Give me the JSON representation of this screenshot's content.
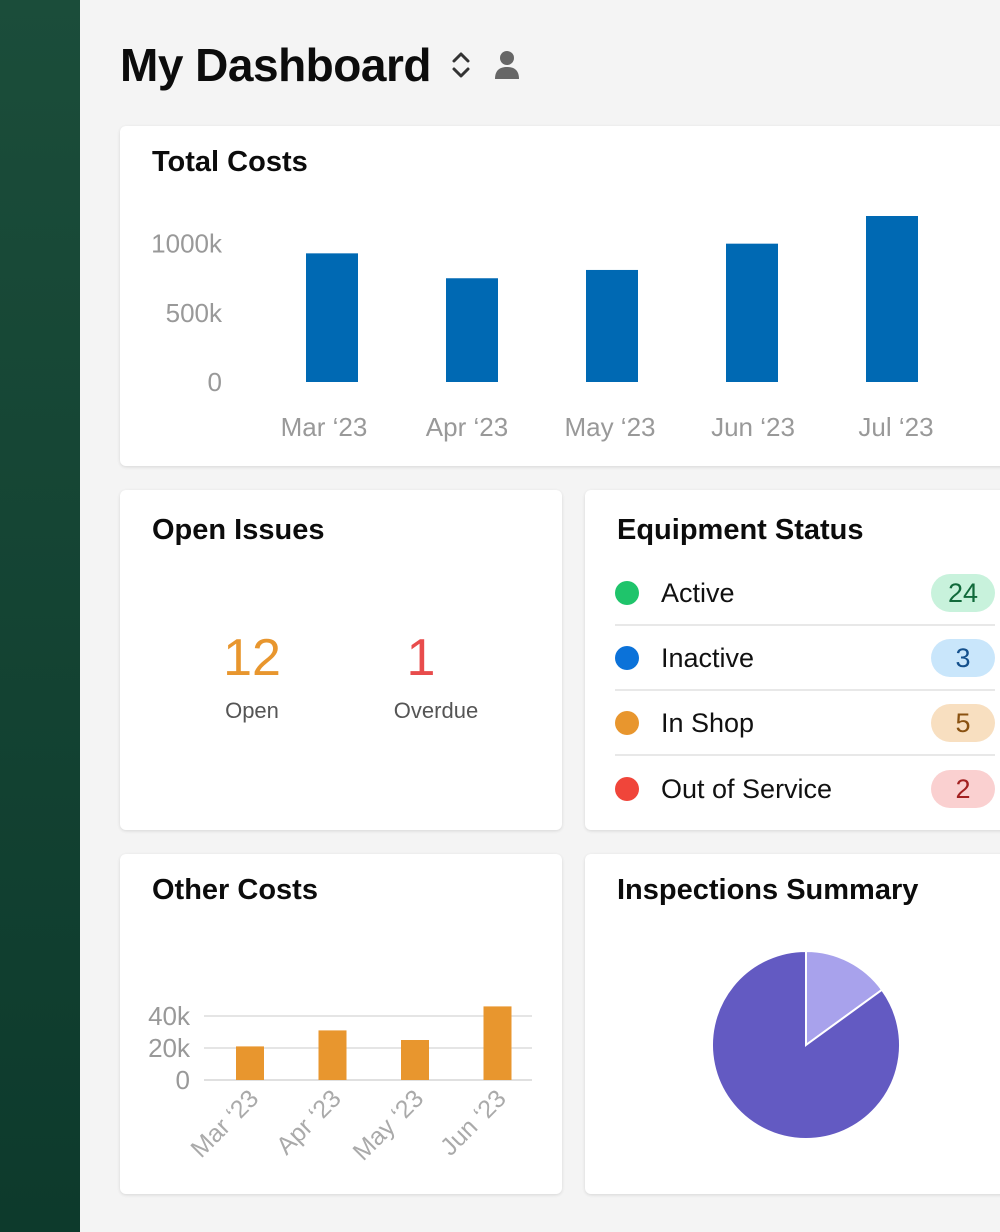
{
  "header": {
    "title": "My Dashboard",
    "switch_icon": "chevron-up-down-icon",
    "user_icon": "user-icon"
  },
  "total_costs": {
    "title": "Total Costs",
    "chart_data": {
      "type": "bar",
      "categories": [
        "Mar ‘23",
        "Apr ‘23",
        "May ‘23",
        "Jun ‘23",
        "Jul ‘23"
      ],
      "values": [
        930,
        750,
        810,
        1000,
        1200
      ],
      "yticks": [
        "1000k",
        "500k",
        "0"
      ],
      "ytick_values": [
        1000,
        500,
        0
      ],
      "ylim": [
        0,
        1200
      ],
      "color": "#0069b3",
      "grid": false
    }
  },
  "open_issues": {
    "title": "Open Issues",
    "open": {
      "value": "12",
      "label": "Open",
      "color": "#e8962e"
    },
    "overdue": {
      "value": "1",
      "label": "Overdue",
      "color": "#e84c4c"
    }
  },
  "equipment_status": {
    "title": "Equipment Status",
    "items": [
      {
        "label": "Active",
        "count": "24",
        "dot": "#1fc46b",
        "badge_bg": "#c8f2dc",
        "badge_fg": "#116a3b"
      },
      {
        "label": "Inactive",
        "count": "3",
        "dot": "#0b72d9",
        "badge_bg": "#c9e6fb",
        "badge_fg": "#14508c"
      },
      {
        "label": "In Shop",
        "count": "5",
        "dot": "#e8962e",
        "badge_bg": "#f8dfc0",
        "badge_fg": "#8a5211"
      },
      {
        "label": "Out of Service",
        "count": "2",
        "dot": "#f0453a",
        "badge_bg": "#fad0d0",
        "badge_fg": "#a22020"
      }
    ]
  },
  "other_costs": {
    "title": "Other Costs",
    "chart_data": {
      "type": "bar",
      "categories": [
        "Mar ‘23",
        "Apr ‘23",
        "May ‘23",
        "Jun ‘23"
      ],
      "values": [
        21,
        31,
        25,
        46
      ],
      "yticks": [
        "40k",
        "20k",
        "0"
      ],
      "ytick_values": [
        40,
        20,
        0
      ],
      "ylim": [
        0,
        46
      ],
      "color": "#e8962e",
      "grid": true
    }
  },
  "inspections": {
    "title": "Inspections Summary",
    "chart_data": {
      "type": "pie",
      "values": [
        15,
        85
      ],
      "colors": [
        "#a8a2ec",
        "#635ac2"
      ]
    }
  }
}
